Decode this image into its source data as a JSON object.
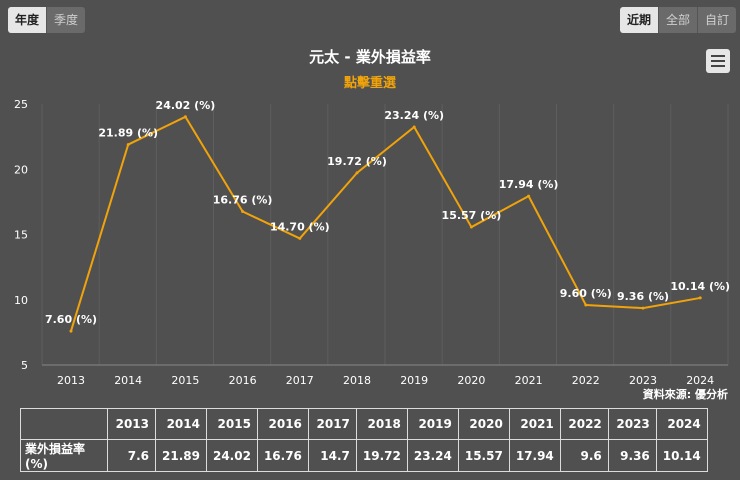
{
  "period_buttons": [
    {
      "label": "年度",
      "active": true
    },
    {
      "label": "季度",
      "active": false
    }
  ],
  "range_buttons": [
    {
      "label": "近期",
      "active": true
    },
    {
      "label": "全部",
      "active": false
    },
    {
      "label": "自訂",
      "active": false
    }
  ],
  "menu_icon": "hamburger-menu-icon",
  "source_credit": "資料來源: 優分析",
  "table": {
    "row_label": "業外損益率(%)",
    "years": [
      "2013",
      "2014",
      "2015",
      "2016",
      "2017",
      "2018",
      "2019",
      "2020",
      "2021",
      "2022",
      "2023",
      "2024"
    ],
    "values": [
      "7.6",
      "21.89",
      "24.02",
      "16.76",
      "14.7",
      "19.72",
      "23.24",
      "15.57",
      "17.94",
      "9.6",
      "9.36",
      "10.14"
    ]
  },
  "chart_data": {
    "type": "line",
    "title": "元太 - 業外損益率",
    "subtitle": "點擊重選",
    "categories": [
      "2013",
      "2014",
      "2015",
      "2016",
      "2017",
      "2018",
      "2019",
      "2020",
      "2021",
      "2022",
      "2023",
      "2024"
    ],
    "series": [
      {
        "name": "業外損益率",
        "values": [
          7.6,
          21.89,
          24.02,
          16.76,
          14.7,
          19.72,
          23.24,
          15.57,
          17.94,
          9.6,
          9.36,
          10.14
        ]
      }
    ],
    "data_labels": [
      "7.60 (%)",
      "21.89 (%)",
      "24.02 (%)",
      "16.76 (%)",
      "14.70 (%)",
      "19.72 (%)",
      "23.24 (%)",
      "15.57 (%)",
      "17.94 (%)",
      "9.60 (%)",
      "9.36 (%)",
      "10.14 (%)"
    ],
    "y_ticks": [
      "5",
      "10",
      "15",
      "20",
      "25"
    ],
    "ylim": [
      5,
      25
    ],
    "grid": "vertical",
    "xlabel": "",
    "ylabel": "",
    "line_color": "#f0a30a",
    "subtitle_color": "#f0a30a"
  }
}
